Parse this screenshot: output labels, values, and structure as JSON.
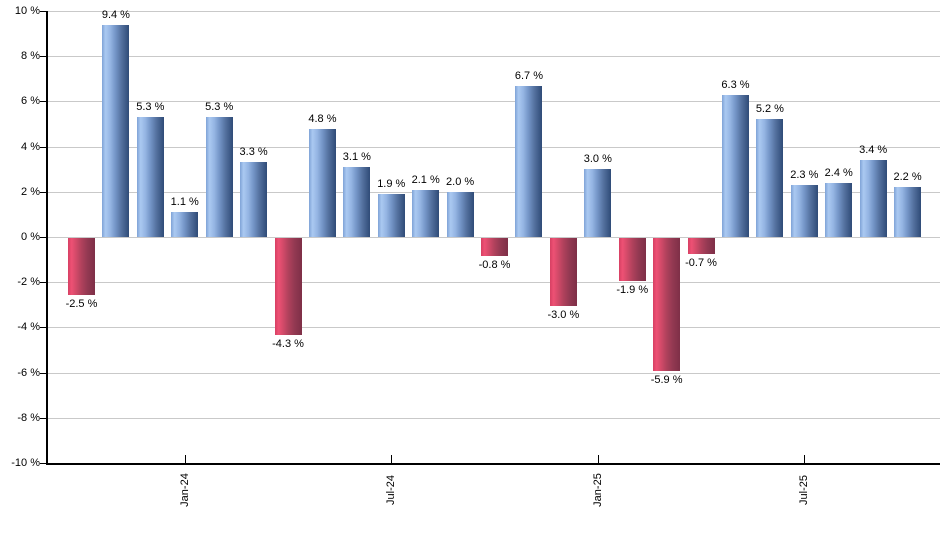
{
  "chart_data": {
    "type": "bar",
    "title": "",
    "unit": "%",
    "ylim": [
      -10,
      10
    ],
    "y_tick_step": 2,
    "grid": true,
    "legend_position": "none",
    "values": [
      -2.5,
      9.4,
      5.3,
      1.1,
      5.3,
      3.3,
      -4.3,
      4.8,
      3.1,
      1.9,
      2.1,
      2.0,
      -0.8,
      6.7,
      -3.0,
      3.0,
      -1.9,
      -5.9,
      -0.7,
      6.3,
      5.2,
      2.3,
      2.4,
      3.4,
      2.2
    ],
    "bar_labels": [
      "-2.5 %",
      "9.4 %",
      "5.3 %",
      "1.1 %",
      "5.3 %",
      "3.3 %",
      "-4.3 %",
      "4.8 %",
      "3.1 %",
      "1.9 %",
      "2.1 %",
      "2.0 %",
      "-0.8 %",
      "6.7 %",
      "-3.0 %",
      "3.0 %",
      "-1.9 %",
      "-5.9 %",
      "-0.7 %",
      "6.3 %",
      "5.2 %",
      "2.3 %",
      "2.4 %",
      "3.4 %",
      "2.2 %"
    ],
    "y_tick_labels": [
      "10 %",
      "8 %",
      "6 %",
      "4 %",
      "2 %",
      "0 %",
      "-2 %",
      "-4 %",
      "-6 %",
      "-8 %",
      "-10 %"
    ],
    "x_ticks": [
      {
        "bar_index": 3,
        "label": "Jan-24"
      },
      {
        "bar_index": 9,
        "label": "Jul-24"
      },
      {
        "bar_index": 15,
        "label": "Jan-25"
      },
      {
        "bar_index": 21,
        "label": "Jul-25"
      }
    ]
  },
  "colors": {
    "positive_gradient": [
      "#7fa3d6",
      "#aac9f1",
      "#96b6e4",
      "#7495c7",
      "#54719f",
      "#2f4b77"
    ],
    "negative_gradient": [
      "#d63f63",
      "#ee5174",
      "#d24a69",
      "#b0415c",
      "#933952",
      "#7e2f47"
    ],
    "gridline": "#c9c9c9",
    "axis": "#000000",
    "background": "#ffffff",
    "text": "#000000"
  }
}
